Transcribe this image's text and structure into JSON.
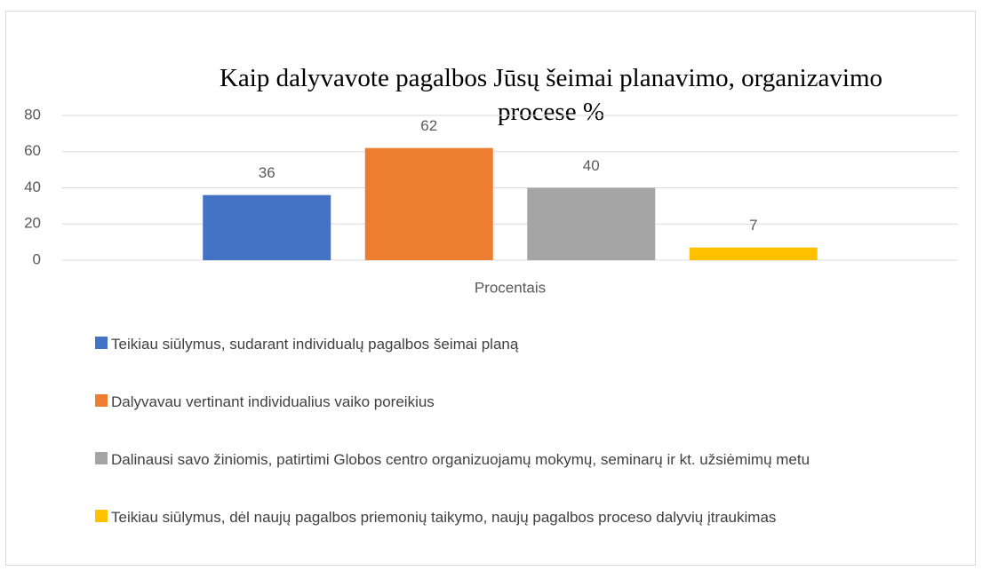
{
  "chart_data": {
    "type": "bar",
    "title": "Kaip dalyvavote pagalbos Jūsų šeimai planavimo, organizavimo procese %",
    "categories": [
      "Procentais"
    ],
    "series": [
      {
        "name": "Teikiau siūlymus, sudarant individualų pagalbos šeimai planą",
        "color": "#4472c4",
        "values": [
          36
        ]
      },
      {
        "name": "Dalyvavau vertinant individualius vaiko poreikius",
        "color": "#ed7d31",
        "values": [
          62
        ]
      },
      {
        "name": "Dalinausi savo žiniomis, patirtimi Globos centro organizuojamų  mokymų, seminarų ir kt. užsiėmimų metu",
        "color": "#a5a5a5",
        "values": [
          40
        ]
      },
      {
        "name": "Teikiau siūlymus, dėl naujų pagalbos priemonių taikymo, naujų pagalbos proceso dalyvių įtraukimas",
        "color": "#ffc000",
        "values": [
          7
        ]
      }
    ],
    "ylim": [
      0,
      80
    ],
    "yticks": [
      0,
      20,
      40,
      60,
      80
    ],
    "grid": true,
    "legend": "bottom"
  }
}
